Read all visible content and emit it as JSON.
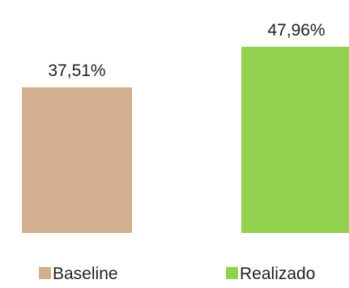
{
  "chart_data": {
    "type": "bar",
    "categories": [
      "Baseline",
      "Realizado"
    ],
    "values": [
      37.51,
      47.96
    ],
    "value_labels": [
      "37,51%",
      "47,96%"
    ],
    "colors": [
      "#d2b08f",
      "#92d050"
    ],
    "ylim": [
      0,
      60
    ],
    "grid": false,
    "legend": {
      "placement": "bottom",
      "entries": [
        "Baseline",
        "Realizado"
      ]
    }
  }
}
